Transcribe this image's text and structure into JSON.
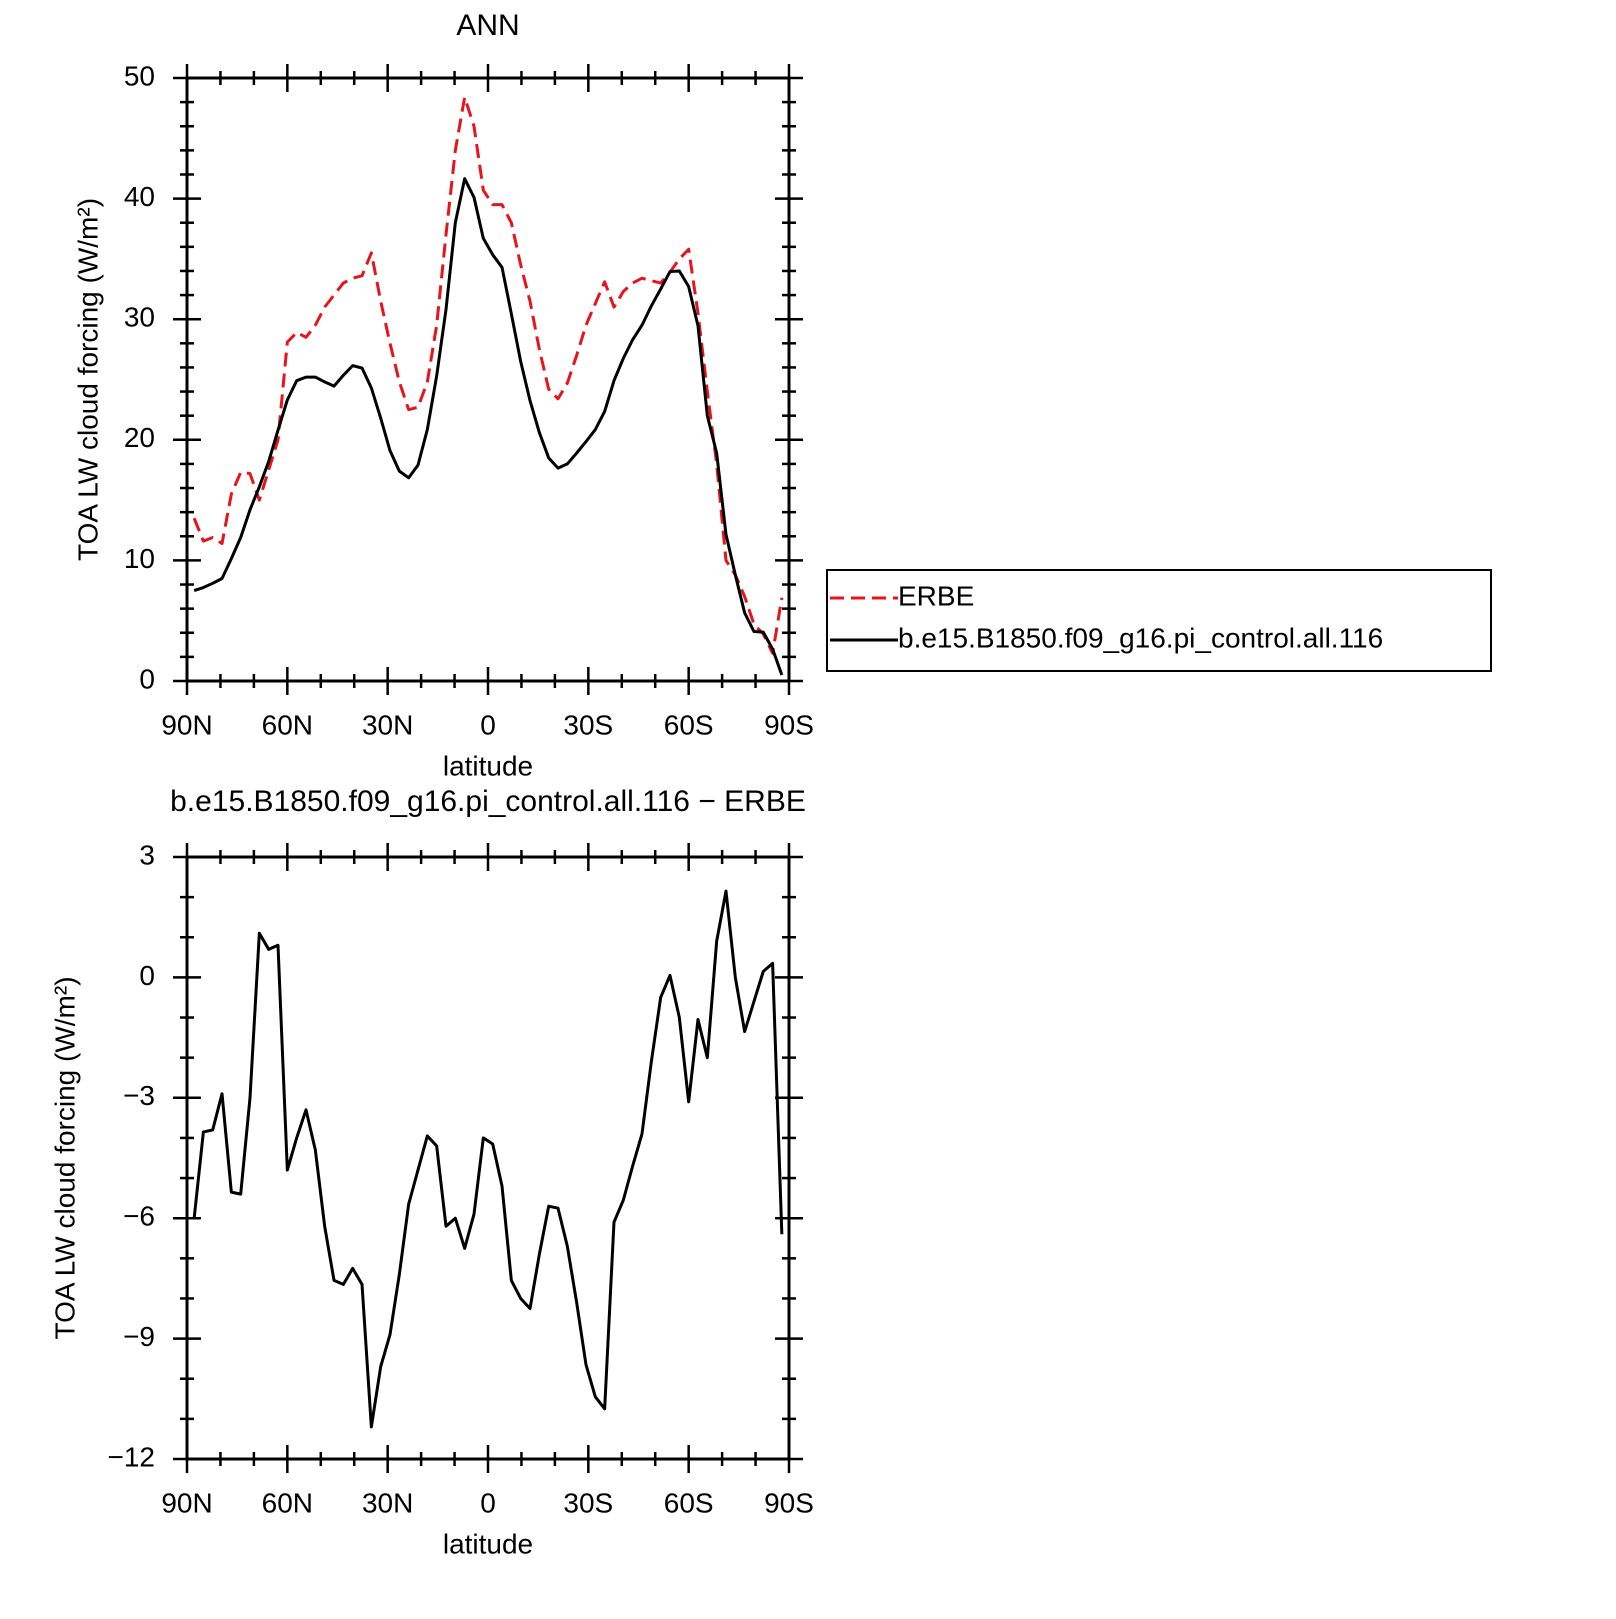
{
  "chart_data": [
    {
      "type": "line",
      "title": "ANN",
      "xlabel": "latitude",
      "ylabel": "TOA LW cloud forcing (W/m²)",
      "x": [
        87.86,
        85.1,
        82.31,
        79.53,
        76.74,
        73.95,
        71.16,
        68.37,
        65.58,
        62.79,
        60.0,
        57.21,
        54.42,
        51.63,
        48.84,
        46.04,
        43.25,
        40.46,
        37.67,
        34.88,
        32.09,
        29.3,
        26.51,
        23.72,
        20.93,
        18.14,
        15.35,
        12.56,
        9.77,
        6.98,
        4.19,
        1.4,
        -1.4,
        -4.19,
        -6.98,
        -9.77,
        -12.56,
        -15.35,
        -18.14,
        -20.93,
        -23.72,
        -26.51,
        -29.3,
        -32.09,
        -34.88,
        -37.67,
        -40.46,
        -43.25,
        -46.04,
        -48.84,
        -51.63,
        -54.42,
        -57.21,
        -60.0,
        -62.79,
        -65.58,
        -68.37,
        -71.16,
        -73.95,
        -76.74,
        -79.53,
        -82.31,
        -85.1,
        -87.86
      ],
      "series": [
        {
          "name": "ERBE",
          "color": "#e8141c",
          "dash": true,
          "values": [
            13.5,
            11.6,
            11.9,
            11.4,
            15.5,
            17.3,
            17.2,
            15.0,
            17.5,
            20.0,
            28.1,
            28.9,
            28.5,
            29.5,
            31.0,
            32.0,
            33.0,
            33.4,
            33.6,
            35.5,
            31.5,
            28.0,
            24.8,
            22.5,
            22.7,
            24.8,
            29.5,
            37.0,
            44.0,
            48.4,
            46.0,
            40.7,
            39.5,
            39.5,
            38.0,
            34.5,
            31.5,
            27.5,
            24.2,
            23.4,
            24.7,
            27.0,
            29.5,
            31.3,
            33.1,
            31.0,
            32.3,
            33.0,
            33.4,
            33.2,
            33.0,
            33.9,
            35.0,
            35.8,
            30.5,
            24.0,
            18.0,
            10.0,
            8.8,
            7.0,
            4.7,
            3.9,
            2.3,
            6.9
          ]
        },
        {
          "name": "b.e15.B1850.f09_g16.pi_control.all.116",
          "color": "#000000",
          "dash": false,
          "values": [
            7.5,
            7.75,
            8.1,
            8.5,
            10.15,
            11.9,
            14.2,
            16.1,
            18.2,
            20.8,
            23.3,
            24.9,
            25.2,
            25.2,
            24.8,
            24.45,
            25.35,
            26.15,
            25.95,
            24.3,
            21.8,
            19.1,
            17.4,
            16.85,
            17.9,
            20.85,
            25.3,
            30.8,
            38.0,
            41.65,
            40.1,
            36.7,
            35.35,
            34.3,
            30.45,
            26.5,
            23.25,
            20.6,
            18.5,
            17.65,
            18.0,
            18.9,
            19.85,
            20.85,
            22.35,
            24.9,
            26.75,
            28.3,
            29.5,
            31.1,
            32.5,
            33.95,
            34.0,
            32.7,
            29.45,
            22.0,
            18.9,
            12.15,
            8.8,
            5.65,
            4.1,
            4.05,
            2.65,
            0.5
          ]
        }
      ],
      "xlim": [
        90,
        -90
      ],
      "xticks": [
        {
          "value": 90,
          "label": "90N"
        },
        {
          "value": 60,
          "label": "60N"
        },
        {
          "value": 30,
          "label": "30N"
        },
        0,
        {
          "value": -30,
          "label": "30S"
        },
        {
          "value": -60,
          "label": "60S"
        },
        {
          "value": -90,
          "label": "90S"
        }
      ],
      "minor_xticks": [
        80,
        70,
        50,
        40,
        20,
        10,
        -10,
        -20,
        -40,
        -50,
        -70,
        -80
      ],
      "ylim": [
        0,
        50
      ],
      "yticks": [
        0,
        10,
        20,
        30,
        40,
        50
      ],
      "minor_yticks": [
        2,
        4,
        6,
        8,
        12,
        14,
        16,
        18,
        22,
        24,
        26,
        28,
        32,
        34,
        36,
        38,
        42,
        44,
        46,
        48
      ],
      "legend": "outside right"
    },
    {
      "type": "line",
      "title": "b.e15.B1850.f09_g16.pi_control.all.116 − ERBE",
      "xlabel": "latitude",
      "ylabel": "TOA LW cloud forcing (W/m²)",
      "x": [
        87.86,
        85.1,
        82.31,
        79.53,
        76.74,
        73.95,
        71.16,
        68.37,
        65.58,
        62.79,
        60.0,
        57.21,
        54.42,
        51.63,
        48.84,
        46.04,
        43.25,
        40.46,
        37.67,
        34.88,
        32.09,
        29.3,
        26.51,
        23.72,
        20.93,
        18.14,
        15.35,
        12.56,
        9.77,
        6.98,
        4.19,
        1.4,
        -1.4,
        -4.19,
        -6.98,
        -9.77,
        -12.56,
        -15.35,
        -18.14,
        -20.93,
        -23.72,
        -26.51,
        -29.3,
        -32.09,
        -34.88,
        -37.67,
        -40.46,
        -43.25,
        -46.04,
        -48.84,
        -51.63,
        -54.42,
        -57.21,
        -60.0,
        -62.79,
        -65.58,
        -68.37,
        -71.16,
        -73.95,
        -76.74,
        -79.53,
        -82.31,
        -85.1,
        -87.86
      ],
      "series": [
        {
          "color": "#000000",
          "dash": false,
          "values": [
            -6.0,
            -3.85,
            -3.8,
            -2.9,
            -5.35,
            -5.4,
            -3.0,
            1.1,
            0.7,
            0.8,
            -4.8,
            -4.0,
            -3.3,
            -4.3,
            -6.2,
            -7.55,
            -7.65,
            -7.25,
            -7.65,
            -11.2,
            -9.7,
            -8.9,
            -7.4,
            -5.65,
            -4.8,
            -3.95,
            -4.2,
            -6.2,
            -6.0,
            -6.75,
            -5.9,
            -4.0,
            -4.15,
            -5.2,
            -7.55,
            -8.0,
            -8.25,
            -6.9,
            -5.7,
            -5.75,
            -6.7,
            -8.1,
            -9.65,
            -10.45,
            -10.75,
            -6.1,
            -5.55,
            -4.7,
            -3.9,
            -2.1,
            -0.5,
            0.05,
            -1.0,
            -3.1,
            -1.05,
            -2.0,
            0.9,
            2.15,
            0.0,
            -1.35,
            -0.6,
            0.15,
            0.35,
            -6.4
          ]
        }
      ],
      "xlim": [
        90,
        -90
      ],
      "xticks": [
        {
          "value": 90,
          "label": "90N"
        },
        {
          "value": 60,
          "label": "60N"
        },
        {
          "value": 30,
          "label": "30N"
        },
        0,
        {
          "value": -30,
          "label": "30S"
        },
        {
          "value": -60,
          "label": "60S"
        },
        {
          "value": -90,
          "label": "90S"
        }
      ],
      "minor_xticks": [
        80,
        70,
        50,
        40,
        20,
        10,
        -10,
        -20,
        -40,
        -50,
        -70,
        -80
      ],
      "ylim": [
        -12,
        3
      ],
      "yticks": [
        {
          "value": -12,
          "label": "−12"
        },
        {
          "value": -9,
          "label": "−9"
        },
        {
          "value": -6,
          "label": "−6"
        },
        {
          "value": -3,
          "label": "−3"
        },
        0,
        3
      ],
      "minor_yticks": [
        -11,
        -10,
        -8,
        -7,
        -5,
        -4,
        -2,
        -1,
        1,
        2
      ]
    }
  ]
}
